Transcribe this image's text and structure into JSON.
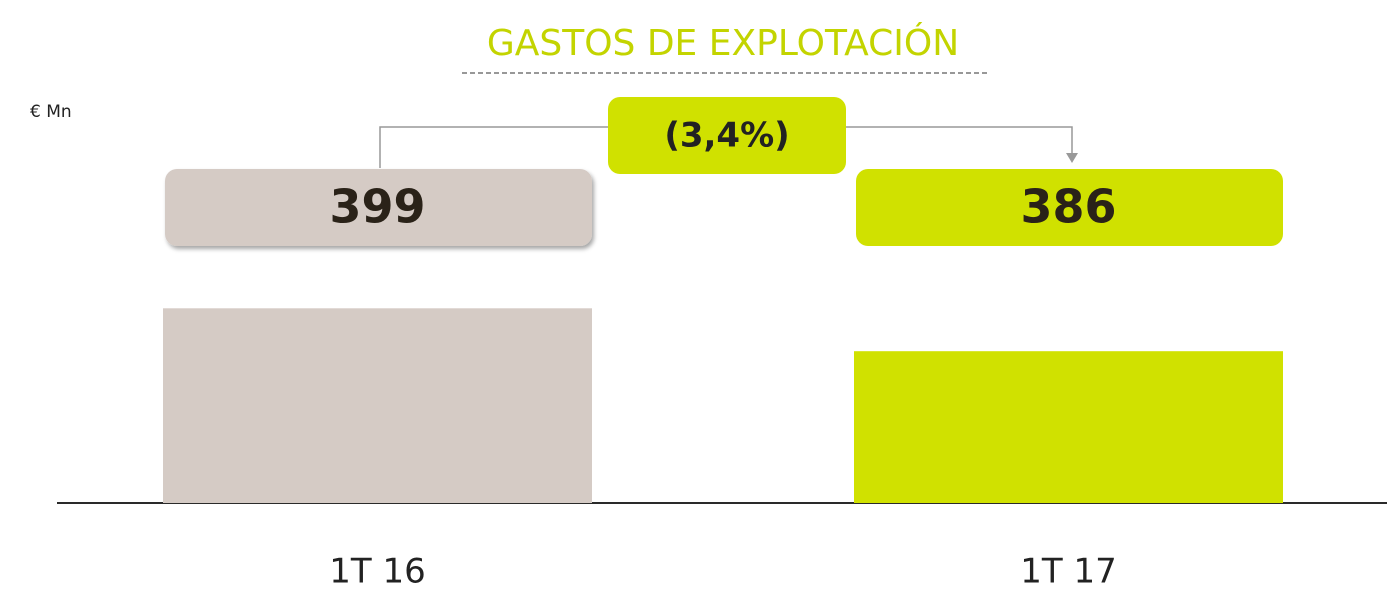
{
  "chart_data": {
    "type": "bar",
    "title": "GASTOS DE EXPLOTACIÓN",
    "unit_label": "€ Mn",
    "categories": [
      "1T 16",
      "1T 17"
    ],
    "values": [
      399,
      386
    ],
    "colors": [
      "#d5cbc5",
      "#d0e100"
    ],
    "change_label": "(3,4%)",
    "title_color": "#c3d400",
    "ylim": [
      340,
      400
    ]
  }
}
